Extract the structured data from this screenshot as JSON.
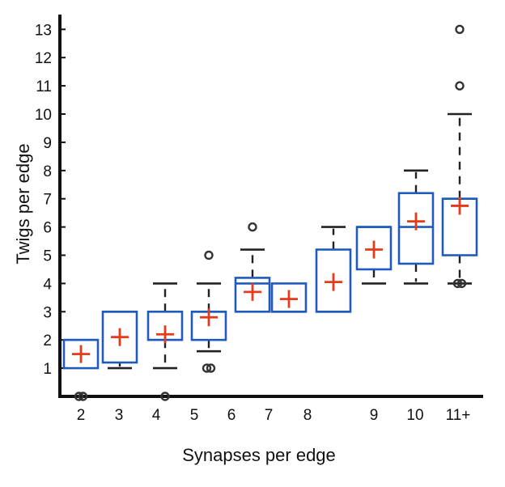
{
  "chart_data": {
    "type": "box",
    "xlabel": "Synapses per edge",
    "ylabel": "Twigs per edge",
    "categories": [
      "2",
      "3",
      "4",
      "5",
      "6",
      "7",
      "8",
      "9",
      "10",
      "11+"
    ],
    "ylim": [
      0,
      13.5
    ],
    "y_ticks": [
      1,
      2,
      3,
      4,
      5,
      6,
      7,
      8,
      9,
      10,
      11,
      12,
      13
    ],
    "grid": false,
    "colors": {
      "box": "#1f5bbd",
      "mean_marker": "#e8391b",
      "whisker": "#222222",
      "outlier": "#333333"
    },
    "boxes": [
      {
        "category": "2",
        "q1": 1,
        "median": 2,
        "q3": 2,
        "mean": 1.5,
        "whisker_low": null,
        "whisker_high": null,
        "outliers": [
          0,
          0
        ]
      },
      {
        "category": "3",
        "q1": 1.2,
        "median": 3,
        "q3": 3,
        "mean": 2.1,
        "whisker_low": 1,
        "whisker_high": null,
        "outliers": []
      },
      {
        "category": "4",
        "q1": 2,
        "median": 2,
        "q3": 3,
        "mean": 2.2,
        "whisker_low": 1,
        "whisker_high": 4,
        "outliers": [
          0
        ]
      },
      {
        "category": "5",
        "q1": 2,
        "median": 3,
        "q3": 3,
        "mean": 2.8,
        "whisker_low": 1.6,
        "whisker_high": 4,
        "outliers": [
          1,
          1,
          5
        ]
      },
      {
        "category": "6",
        "q1": 3,
        "median": 4,
        "q3": 4.2,
        "mean": 3.7,
        "whisker_low": null,
        "whisker_high": 5.2,
        "outliers": [
          6
        ]
      },
      {
        "category": "7",
        "q1": 3,
        "median": 3,
        "q3": 4,
        "mean": 3.45,
        "whisker_low": null,
        "whisker_high": null,
        "outliers": []
      },
      {
        "category": "8",
        "q1": 3,
        "median": 3,
        "q3": 5.2,
        "mean": 4.05,
        "whisker_low": null,
        "whisker_high": 6,
        "outliers": []
      },
      {
        "category": "9",
        "q1": 4.5,
        "median": 6,
        "q3": 6,
        "mean": 5.2,
        "whisker_low": 4,
        "whisker_high": null,
        "outliers": []
      },
      {
        "category": "10",
        "q1": 4.7,
        "median": 6,
        "q3": 7.2,
        "mean": 6.2,
        "whisker_low": 4,
        "whisker_high": 8,
        "outliers": []
      },
      {
        "category": "11+",
        "q1": 5,
        "median": 7,
        "q3": 7,
        "mean": 6.75,
        "whisker_low": 4,
        "whisker_high": 10,
        "outliers": [
          4,
          4,
          11,
          13
        ]
      }
    ]
  }
}
